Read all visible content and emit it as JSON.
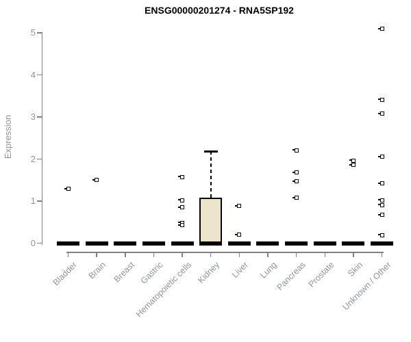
{
  "chart_data": {
    "type": "boxplot",
    "title": "ENSG00000201274 - RNA5SP192",
    "ylabel": "Expression",
    "ylim": [
      0,
      5
    ],
    "yticks": [
      0,
      1,
      2,
      3,
      4,
      5
    ],
    "categories": [
      "Bladder",
      "Brain",
      "Breast",
      "Gastric",
      "Hematopoietic cells",
      "Kidney",
      "Liver",
      "Lung",
      "Pancreas",
      "Prostate",
      "Skin",
      "Unknown / Other"
    ],
    "series": [
      {
        "category": "Bladder",
        "median": 0,
        "q1": 0,
        "q3": 0,
        "whisker_low": 0,
        "whisker_high": 0,
        "outliers": [
          1.29
        ]
      },
      {
        "category": "Brain",
        "median": 0,
        "q1": 0,
        "q3": 0,
        "whisker_low": 0,
        "whisker_high": 0,
        "outliers": [
          1.5
        ]
      },
      {
        "category": "Breast",
        "median": 0,
        "q1": 0,
        "q3": 0,
        "whisker_low": 0,
        "whisker_high": 0,
        "outliers": []
      },
      {
        "category": "Gastric",
        "median": 0,
        "q1": 0,
        "q3": 0,
        "whisker_low": 0,
        "whisker_high": 0,
        "outliers": []
      },
      {
        "category": "Hematopoietic cells",
        "median": 0,
        "q1": 0,
        "q3": 0,
        "whisker_low": 0,
        "whisker_high": 0,
        "outliers": [
          1.57,
          1.02,
          0.85,
          0.48,
          0.43
        ]
      },
      {
        "category": "Kidney",
        "median": 0,
        "q1": 0,
        "q3": 1.08,
        "whisker_low": 0,
        "whisker_high": 2.18,
        "outliers": []
      },
      {
        "category": "Liver",
        "median": 0,
        "q1": 0,
        "q3": 0,
        "whisker_low": 0,
        "whisker_high": 0,
        "outliers": [
          0.88,
          0.2
        ]
      },
      {
        "category": "Lung",
        "median": 0,
        "q1": 0,
        "q3": 0,
        "whisker_low": 0,
        "whisker_high": 0,
        "outliers": []
      },
      {
        "category": "Pancreas",
        "median": 0,
        "q1": 0,
        "q3": 0,
        "whisker_low": 0,
        "whisker_high": 0,
        "outliers": [
          2.21,
          1.68,
          1.47,
          1.08
        ]
      },
      {
        "category": "Prostate",
        "median": 0,
        "q1": 0,
        "q3": 0,
        "whisker_low": 0,
        "whisker_high": 0,
        "outliers": []
      },
      {
        "category": "Skin",
        "median": 0,
        "q1": 0,
        "q3": 0,
        "whisker_low": 0,
        "whisker_high": 0,
        "outliers": [
          1.96,
          1.86
        ]
      },
      {
        "category": "Unknown / Other",
        "median": 0,
        "q1": 0,
        "q3": 0,
        "whisker_low": 0,
        "whisker_high": 0,
        "outliers": [
          5.09,
          3.41,
          3.08,
          2.05,
          1.42,
          1.02,
          0.91,
          0.67,
          0.19
        ]
      }
    ],
    "colors": {
      "box_fill": "#ECE5CB",
      "box_border": "#000000",
      "axis": "#808080",
      "tick_label": "#8c959d",
      "title": "#000000"
    },
    "layout": {
      "grid": false,
      "legend": false,
      "x_label_angle": 45
    }
  }
}
